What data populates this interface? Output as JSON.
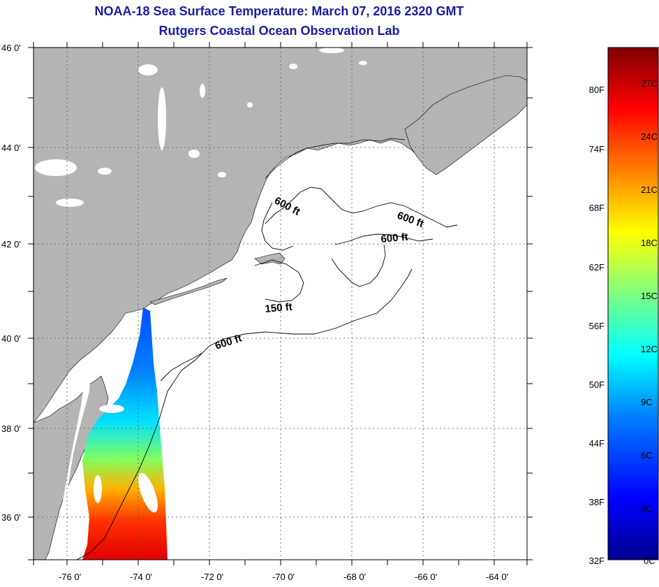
{
  "header": {
    "title": "NOAA-18 Sea Surface Temperature:  March 07, 2016 2320 GMT",
    "subtitle": "Rutgers Coastal Ocean Observation Lab"
  },
  "map": {
    "lat_labels": [
      "46 0'",
      "44 0'",
      "42 0'",
      "40 0'",
      "38 0'",
      "36 0'"
    ],
    "lon_labels": [
      "-76 0'",
      "-74 0'",
      "-72 0'",
      "-70 0'",
      "-68 0'",
      "-66 0'",
      "-64 0'"
    ],
    "contour_labels": [
      "600 ft",
      "600 ft",
      "600 ft",
      "150 ft",
      "600 ft"
    ],
    "colors": {
      "land": "#b4b4b4",
      "ocean": "#ffffff",
      "grid": "#555555"
    }
  },
  "colorbar": {
    "fahrenheit_labels": [
      "80F",
      "74F",
      "68F",
      "62F",
      "56F",
      "50F",
      "44F",
      "38F",
      "32F"
    ],
    "celsius_labels": [
      "27C",
      "24C",
      "21C",
      "18C",
      "15C",
      "12C",
      "9C",
      "6C",
      "3C",
      "0C"
    ],
    "gradient_stops": [
      "#00008f",
      "#0000ff",
      "#0080ff",
      "#00ffff",
      "#80ff80",
      "#ffff00",
      "#ff8000",
      "#ff0000",
      "#800000"
    ]
  }
}
